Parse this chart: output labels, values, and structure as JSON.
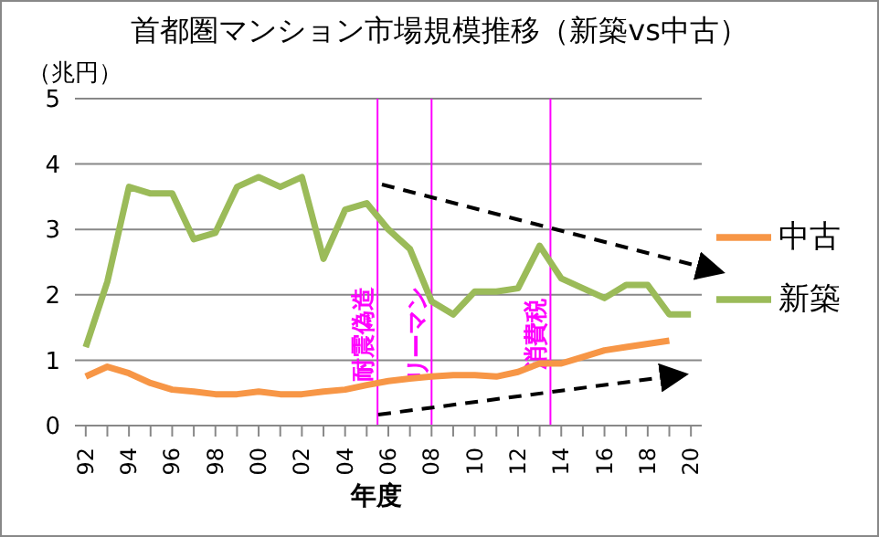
{
  "chart_data": {
    "type": "line",
    "title": "首都圏マンション市場規模推移（新築vs中古）",
    "ylabel": "（兆円）",
    "xlabel": "年度",
    "x": [
      1992,
      1993,
      1994,
      1995,
      1996,
      1997,
      1998,
      1999,
      2000,
      2001,
      2002,
      2003,
      2004,
      2005,
      2006,
      2007,
      2008,
      2009,
      2010,
      2011,
      2012,
      2013,
      2014,
      2015,
      2016,
      2017,
      2018,
      2019,
      2020
    ],
    "series": [
      {
        "name": "新築",
        "color": "#9bbb59",
        "values": [
          1.2,
          2.2,
          3.65,
          3.55,
          3.55,
          2.85,
          2.95,
          3.65,
          3.8,
          3.65,
          3.8,
          2.55,
          3.3,
          3.4,
          3.0,
          2.7,
          1.9,
          1.7,
          2.05,
          2.05,
          2.1,
          2.75,
          2.25,
          2.1,
          1.95,
          2.15,
          2.15,
          1.7,
          1.7
        ]
      },
      {
        "name": "中古",
        "color": "#f79646",
        "values": [
          0.75,
          0.9,
          0.8,
          0.65,
          0.55,
          0.52,
          0.48,
          0.48,
          0.52,
          0.48,
          0.48,
          0.52,
          0.55,
          0.62,
          0.68,
          0.72,
          0.75,
          0.77,
          0.77,
          0.75,
          0.82,
          0.95,
          0.95,
          1.05,
          1.15,
          1.2,
          1.25,
          1.3,
          null
        ]
      }
    ],
    "xlim": [
      1991.5,
      2020.5
    ],
    "xticks": [
      {
        "value": 1992,
        "label": "92"
      },
      {
        "value": 1993,
        "label": null
      },
      {
        "value": 1994,
        "label": "94"
      },
      {
        "value": 1995,
        "label": null
      },
      {
        "value": 1996,
        "label": "96"
      },
      {
        "value": 1997,
        "label": null
      },
      {
        "value": 1998,
        "label": "98"
      },
      {
        "value": 1999,
        "label": null
      },
      {
        "value": 2000,
        "label": "00"
      },
      {
        "value": 2001,
        "label": null
      },
      {
        "value": 2002,
        "label": "02"
      },
      {
        "value": 2003,
        "label": null
      },
      {
        "value": 2004,
        "label": "04"
      },
      {
        "value": 2005,
        "label": null
      },
      {
        "value": 2006,
        "label": "06"
      },
      {
        "value": 2007,
        "label": null
      },
      {
        "value": 2008,
        "label": "08"
      },
      {
        "value": 2009,
        "label": null
      },
      {
        "value": 2010,
        "label": "10"
      },
      {
        "value": 2011,
        "label": null
      },
      {
        "value": 2012,
        "label": "12"
      },
      {
        "value": 2013,
        "label": null
      },
      {
        "value": 2014,
        "label": "14"
      },
      {
        "value": 2015,
        "label": null
      },
      {
        "value": 2016,
        "label": "16"
      },
      {
        "value": 2017,
        "label": null
      },
      {
        "value": 2018,
        "label": "18"
      },
      {
        "value": 2019,
        "label": null
      },
      {
        "value": 2020,
        "label": "20"
      }
    ],
    "ylim": [
      0,
      5
    ],
    "yticks": [
      0,
      1,
      2,
      3,
      4,
      5
    ],
    "grid": "y",
    "legend": "right",
    "marker": "none",
    "line_style": "solid",
    "ref_lines": [
      {
        "axis": "x",
        "value": 2005.5,
        "label": "耐震偽造",
        "color": "#ff00ff"
      },
      {
        "axis": "x",
        "value": 2008,
        "label": "リーマン",
        "color": "#ff00ff"
      },
      {
        "axis": "x",
        "value": 2013.5,
        "label": "消費税",
        "color": "#ff00ff"
      }
    ]
  }
}
